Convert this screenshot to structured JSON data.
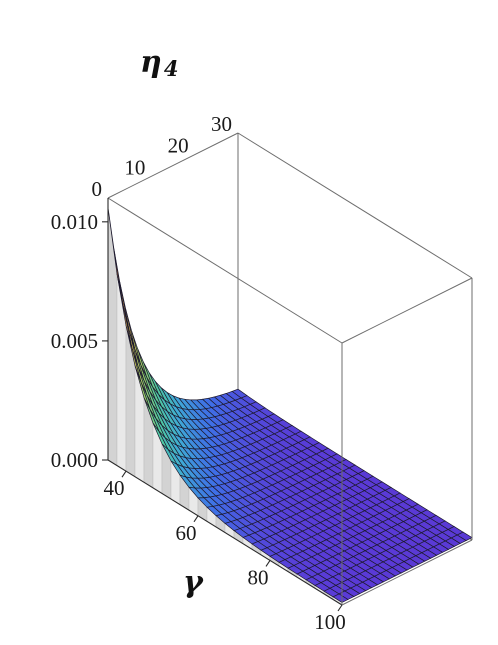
{
  "chart_data": {
    "type": "surface3d",
    "title": "",
    "axes": {
      "x": {
        "label": "γ",
        "ticks": [
          "40",
          "60",
          "80",
          "100"
        ],
        "range": [
          35,
          100
        ]
      },
      "y": {
        "label": "η",
        "label_subscript": "4",
        "ticks": [
          "0",
          "10",
          "20",
          "30"
        ],
        "range": [
          0,
          30
        ]
      },
      "z": {
        "label": "",
        "ticks": [
          "0.000",
          "0.005",
          "0.010"
        ],
        "range": [
          0,
          0.011
        ]
      }
    },
    "surface": {
      "description_function": "z = 0.0105 * exp(-(gamma-35)/9) * exp(-eta/7) + 0.0001",
      "gamma_samples": [
        35,
        40,
        45,
        50,
        55,
        60,
        65,
        70,
        75,
        80,
        85,
        90,
        95,
        100
      ],
      "eta_samples": [
        0,
        5,
        10,
        15,
        20,
        25,
        30
      ],
      "z_at_eta0": [
        0.0106,
        0.0061,
        0.0035,
        0.002,
        0.0012,
        0.0007,
        0.0004,
        0.0003,
        0.0002,
        0.00015,
        0.00012,
        0.00011,
        0.0001,
        0.0001
      ],
      "z_at_eta30": [
        0.0001,
        0.0001,
        0.0001,
        0.0001,
        0.0001,
        0.0001,
        0.0001,
        0.0001,
        0.0001,
        0.0001,
        0.0001,
        0.0001,
        0.0001,
        0.0001
      ]
    },
    "colormap": [
      "#7a1f9e",
      "#5a3ad6",
      "#3f6fe6",
      "#3fa9d6",
      "#4fc9a0",
      "#9bd46a",
      "#e0c65a",
      "#f0a040",
      "#e86a3a"
    ],
    "box": true,
    "grid": false
  }
}
